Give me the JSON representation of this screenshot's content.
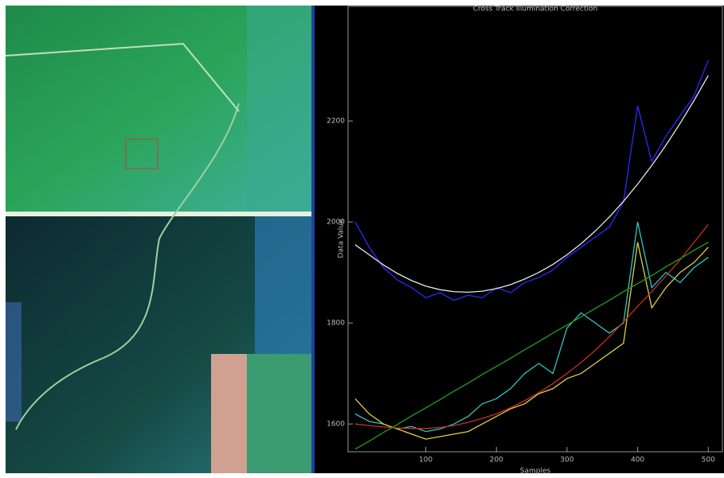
{
  "chart_data": {
    "type": "line",
    "title": "Cross Track Illumination Correction",
    "x_label": "Samples",
    "y_label": "Data Value",
    "x": [
      0,
      20,
      40,
      60,
      80,
      100,
      120,
      140,
      160,
      180,
      200,
      220,
      240,
      260,
      280,
      300,
      320,
      340,
      360,
      380,
      400,
      420,
      440,
      460,
      480,
      500
    ],
    "series": [
      {
        "color": "#2a2aff",
        "values": [
          2000,
          1950,
          1910,
          1885,
          1870,
          1850,
          1860,
          1845,
          1855,
          1850,
          1870,
          1860,
          1880,
          1890,
          1905,
          1930,
          1950,
          1970,
          1990,
          2040,
          2230,
          2120,
          2170,
          2210,
          2250,
          2320
        ]
      },
      {
        "color": "#e8e8e8",
        "values": [
          1955,
          1935,
          1915,
          1898,
          1884,
          1873,
          1866,
          1862,
          1861,
          1863,
          1868,
          1876,
          1887,
          1900,
          1916,
          1935,
          1957,
          1982,
          2010,
          2041,
          2075,
          2112,
          2152,
          2195,
          2241,
          2290
        ]
      },
      {
        "color": "#2ec8c8",
        "values": [
          1620,
          1605,
          1600,
          1590,
          1595,
          1585,
          1590,
          1600,
          1615,
          1640,
          1650,
          1670,
          1700,
          1720,
          1700,
          1790,
          1820,
          1800,
          1780,
          1800,
          2000,
          1870,
          1900,
          1880,
          1910,
          1930
        ]
      },
      {
        "color": "#e0d040",
        "values": [
          1650,
          1620,
          1600,
          1590,
          1580,
          1570,
          1575,
          1580,
          1585,
          1600,
          1615,
          1630,
          1640,
          1660,
          1670,
          1690,
          1700,
          1720,
          1740,
          1760,
          1960,
          1830,
          1870,
          1900,
          1920,
          1950
        ]
      },
      {
        "color": "#c83020",
        "values": [
          1600,
          1597,
          1594,
          1592,
          1591,
          1591,
          1593,
          1597,
          1603,
          1611,
          1620,
          1632,
          1646,
          1662,
          1680,
          1700,
          1722,
          1746,
          1773,
          1802,
          1833,
          1862,
          1893,
          1925,
          1960,
          1995
        ]
      },
      {
        "color": "#20a020",
        "values": [
          1550,
          1566,
          1583,
          1599,
          1616,
          1632,
          1648,
          1665,
          1681,
          1698,
          1714,
          1730,
          1747,
          1763,
          1780,
          1796,
          1812,
          1829,
          1845,
          1862,
          1878,
          1894,
          1911,
          1927,
          1944,
          1960
        ]
      }
    ],
    "xlim": [
      -10,
      520
    ],
    "ylim": [
      1545,
      2427
    ],
    "xticks": [
      100,
      200,
      300,
      400,
      500
    ],
    "yticks": [
      1600,
      1800,
      2000,
      2200
    ]
  }
}
